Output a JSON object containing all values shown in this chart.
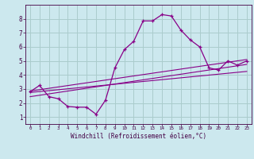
{
  "xlabel": "Windchill (Refroidissement éolien,°C)",
  "bg_color": "#cce8ee",
  "grid_color": "#aacccc",
  "line_color": "#880088",
  "xlim": [
    -0.5,
    23.5
  ],
  "ylim": [
    0.5,
    9.0
  ],
  "xticks": [
    0,
    1,
    2,
    3,
    4,
    5,
    6,
    7,
    8,
    9,
    10,
    11,
    12,
    13,
    14,
    15,
    16,
    17,
    18,
    19,
    20,
    21,
    22,
    23
  ],
  "yticks": [
    1,
    2,
    3,
    4,
    5,
    6,
    7,
    8
  ],
  "curve1_x": [
    0,
    1,
    2,
    3,
    4,
    5,
    6,
    7,
    8,
    9,
    10,
    11,
    12,
    13,
    14,
    15,
    16,
    17,
    18,
    19,
    20,
    21,
    22,
    23
  ],
  "curve1_y": [
    2.8,
    3.25,
    2.45,
    2.3,
    1.75,
    1.7,
    1.7,
    1.2,
    2.2,
    4.5,
    5.8,
    6.4,
    7.85,
    7.85,
    8.3,
    8.2,
    7.2,
    6.5,
    6.0,
    4.5,
    4.35,
    5.0,
    4.7,
    5.0
  ],
  "line1_x": [
    0,
    23
  ],
  "line1_y": [
    2.75,
    4.25
  ],
  "line2_x": [
    0,
    23
  ],
  "line2_y": [
    2.45,
    4.75
  ],
  "line3_x": [
    0,
    23
  ],
  "line3_y": [
    2.85,
    5.1
  ]
}
